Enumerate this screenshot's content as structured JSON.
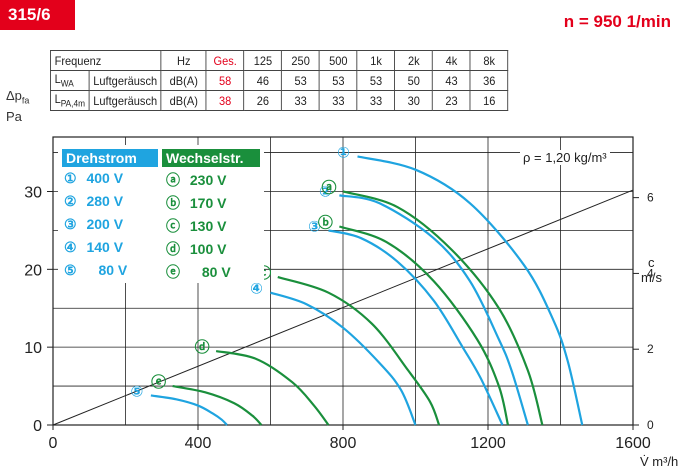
{
  "header": {
    "model": "315/6",
    "speed": "n = 950 1/min",
    "dp_axis_label_1": "Δpfa",
    "dp_axis_label_2": "Pa"
  },
  "table": {
    "header_row": [
      "Frequenz",
      "",
      "Hz",
      "Ges.",
      "125",
      "250",
      "500",
      "1k",
      "2k",
      "4k",
      "8k"
    ],
    "rows": [
      {
        "symbol": "LWA",
        "name": "Luftgeräusch",
        "unit": "dB(A)",
        "total": "58",
        "values": [
          "46",
          "53",
          "53",
          "53",
          "50",
          "43",
          "36"
        ]
      },
      {
        "symbol": "LPA,4m",
        "name": "Luftgeräusch",
        "unit": "dB(A)",
        "total": "38",
        "values": [
          "26",
          "33",
          "33",
          "33",
          "30",
          "23",
          "16"
        ]
      }
    ]
  },
  "legend": {
    "blue_title": "Drehstrom",
    "green_title": "Wechselstr.",
    "blue_items": [
      {
        "marker": "①",
        "label": "400 V"
      },
      {
        "marker": "②",
        "label": "280 V"
      },
      {
        "marker": "③",
        "label": "200 V"
      },
      {
        "marker": "④",
        "label": "140 V"
      },
      {
        "marker": "⑤",
        "label": "80 V"
      }
    ],
    "green_items": [
      {
        "marker": "ⓐ",
        "label": "230 V"
      },
      {
        "marker": "ⓑ",
        "label": "170 V"
      },
      {
        "marker": "ⓒ",
        "label": "130 V"
      },
      {
        "marker": "ⓓ",
        "label": "100 V"
      },
      {
        "marker": "ⓔ",
        "label": "80 V"
      }
    ]
  },
  "density_note": "ρ = 1,20 kg/m³",
  "colors": {
    "blue": "#1fa4e0",
    "green": "#1a8f3c",
    "red": "#e3001b"
  },
  "chart_data": {
    "type": "line",
    "xlabel": "V̇ m³/h",
    "ylabel": "Δpfa Pa",
    "xlim": [
      0,
      1600
    ],
    "ylim": [
      0,
      37
    ],
    "x_ticks": [
      0,
      400,
      800,
      1200,
      1600
    ],
    "y_ticks": [
      0,
      10,
      20,
      30
    ],
    "secondary_axis": {
      "label": "c m/s",
      "ticks": [
        0,
        2,
        4,
        6
      ],
      "line_end": {
        "x": 1600,
        "c": 6.2
      }
    },
    "grid": true,
    "series": [
      {
        "name": "①",
        "color": "blue",
        "x": [
          840,
          1000,
          1150,
          1300,
          1380,
          1420,
          1460
        ],
        "y": [
          34.5,
          32.8,
          28.5,
          20.5,
          13.5,
          8.2,
          0
        ]
      },
      {
        "name": "②",
        "color": "blue",
        "x": [
          790,
          900,
          1050,
          1150,
          1230,
          1265,
          1310
        ],
        "y": [
          29.5,
          28.5,
          24.0,
          18.5,
          11.0,
          7.0,
          0
        ]
      },
      {
        "name": "③",
        "color": "blue",
        "x": [
          760,
          850,
          950,
          1050,
          1130,
          1180,
          1240
        ],
        "y": [
          25.0,
          24.0,
          21.0,
          16.0,
          10.0,
          6.0,
          0
        ]
      },
      {
        "name": "④",
        "color": "blue",
        "x": [
          600,
          700,
          800,
          900,
          960,
          1000
        ],
        "y": [
          17.0,
          15.5,
          12.5,
          8.0,
          4.5,
          0
        ]
      },
      {
        "name": "⑤",
        "color": "blue",
        "x": [
          270,
          340,
          400,
          440,
          465,
          480
        ],
        "y": [
          3.8,
          3.3,
          2.5,
          1.5,
          0.7,
          0
        ]
      },
      {
        "name": "ⓐ",
        "color": "green",
        "x": [
          800,
          950,
          1100,
          1230,
          1310,
          1350
        ],
        "y": [
          30.0,
          28.0,
          22.5,
          15.0,
          7.0,
          0
        ]
      },
      {
        "name": "ⓑ",
        "color": "green",
        "x": [
          790,
          920,
          1050,
          1170,
          1230,
          1255
        ],
        "y": [
          25.5,
          23.5,
          18.5,
          11.0,
          5.0,
          0
        ]
      },
      {
        "name": "ⓒ",
        "color": "green",
        "x": [
          620,
          760,
          880,
          980,
          1040,
          1065
        ],
        "y": [
          19.0,
          17.0,
          13.0,
          7.0,
          3.0,
          0
        ]
      },
      {
        "name": "ⓓ",
        "color": "green",
        "x": [
          450,
          560,
          660,
          720,
          760
        ],
        "y": [
          9.5,
          8.5,
          5.5,
          2.5,
          0
        ]
      },
      {
        "name": "ⓔ",
        "color": "green",
        "x": [
          330,
          420,
          500,
          550,
          575
        ],
        "y": [
          5.0,
          4.2,
          2.8,
          1.2,
          0
        ]
      }
    ]
  }
}
